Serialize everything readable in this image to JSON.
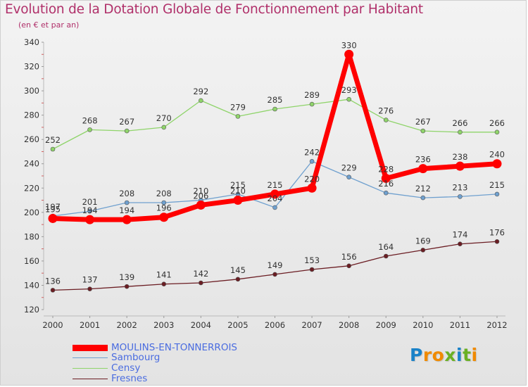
{
  "title": "Evolution de la Dotation Globale de Fonctionnement par Habitant",
  "subtitle": "(en € et par an)",
  "logo": {
    "text": "Proxiti",
    "letters": [
      "P",
      "r",
      "o",
      "x",
      "i",
      "t",
      "i"
    ],
    "colors": [
      "#1a82c8",
      "#f08a00",
      "#f08a00",
      "#6ab023",
      "#1a82c8",
      "#6ab023",
      "#f08a00"
    ]
  },
  "chart_data": {
    "type": "line",
    "title": "Evolution de la Dotation Globale de Fonctionnement par Habitant",
    "subtitle": "(en € et par an)",
    "xlabel": "",
    "ylabel": "",
    "ylim": [
      120,
      340
    ],
    "yticks": [
      120,
      140,
      160,
      180,
      200,
      220,
      240,
      260,
      280,
      300,
      320,
      340
    ],
    "grid": false,
    "legend_position": "bottom-left",
    "x": [
      2000,
      2001,
      2002,
      2003,
      2004,
      2005,
      2006,
      2007,
      2008,
      2009,
      2010,
      2011,
      2012
    ],
    "series": [
      {
        "name": "Fresnes",
        "color": "#6b1d23",
        "values": [
          136,
          137,
          139,
          141,
          142,
          145,
          149,
          153,
          156,
          164,
          169,
          174,
          176
        ]
      },
      {
        "name": "Censy",
        "color": "#8fd46a",
        "values": [
          252,
          268,
          267,
          270,
          292,
          279,
          285,
          289,
          293,
          276,
          267,
          266,
          266
        ]
      },
      {
        "name": "Sambourg",
        "color": "#6fa0cf",
        "values": [
          197,
          201,
          208,
          208,
          210,
          215,
          204,
          242,
          229,
          216,
          212,
          213,
          215
        ]
      },
      {
        "name": "MOULINS-EN-TONNERROIS",
        "color": "#ff0000",
        "values": [
          195,
          194,
          194,
          196,
          206,
          210,
          215,
          220,
          330,
          228,
          236,
          238,
          240
        ]
      }
    ],
    "legend": [
      {
        "name": "MOULINS-EN-TONNERROIS",
        "color": "#ff0000"
      },
      {
        "name": "Sambourg",
        "color": "#6fa0cf"
      },
      {
        "name": "Censy",
        "color": "#8fd46a"
      },
      {
        "name": "Fresnes",
        "color": "#6b1d23"
      }
    ]
  }
}
